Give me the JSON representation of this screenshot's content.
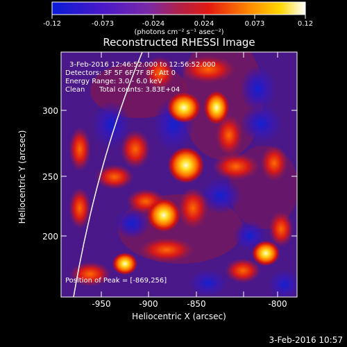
{
  "colorbar": {
    "ticks": [
      "-0.12",
      "-0.073",
      "-0.024",
      "0.024",
      "0.073",
      "0.12"
    ],
    "unit_label": "(photons cm⁻² s⁻¹ asec⁻²)"
  },
  "title": "Reconstructed RHESSI Image",
  "info": {
    "time_range": "3-Feb-2016 12:46:52.000 to 12:56:52.000",
    "detectors": "Detectors: 3F 5F 6F 7F 8F, Att 0",
    "energy": "Energy Range: 3.0 - 6.0 keV",
    "method": "Clean",
    "counts": "Total counts: 3.83E+04"
  },
  "peak_label": "Position of Peak = [-869,256]",
  "axes": {
    "xlabel": "Heliocentric X (arcsec)",
    "ylabel": "Heliocentric Y (arcsec)",
    "xticks": [
      "-950",
      "-900",
      "-850",
      "-800"
    ],
    "yticks": [
      "200",
      "250",
      "300"
    ]
  },
  "footer_date": "3-Feb-2016 10:57"
}
